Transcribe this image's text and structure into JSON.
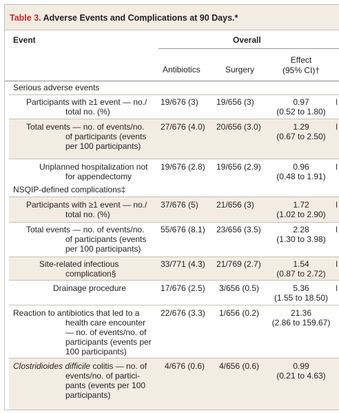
{
  "table": {
    "number_label": "Table 3.",
    "title_text": " Adverse Events and Complications at 90 Days.*",
    "header": {
      "event": "Event",
      "overall": "Overall",
      "antibiotics": "Antibiotics",
      "surgery": "Surgery",
      "effect_line1": "Effect",
      "effect_line2": "(95% CI)†"
    },
    "rows": [
      {
        "section": "Serious adverse events"
      },
      {
        "label": [
          "Participants with ≥1 event — no./",
          "total no. (%)"
        ],
        "antibiotics": "19/676 (3)",
        "surgery": "19/656 (3)",
        "effect": [
          "0.97",
          "(0.52 to 1.80)"
        ]
      },
      {
        "label": [
          "Total events — no. of events/no.",
          "of participants (events",
          "per 100 participants)"
        ],
        "antibiotics": "27/676 (4.0)",
        "surgery": "20/656 (3.0)",
        "effect": [
          "1.29",
          "(0.67 to 2.50)"
        ]
      },
      {
        "label": [
          "Unplanned hospitalization not",
          "for appendectomy"
        ],
        "antibiotics": "19/676 (2.8)",
        "surgery": "19/656 (2.9)",
        "effect": [
          "0.96",
          "(0.48 to 1.91)"
        ]
      },
      {
        "section": "NSQIP-defined complications‡"
      },
      {
        "label": [
          "Participants with ≥1 event — no./",
          "total no. (%)"
        ],
        "antibiotics": "37/676 (5)",
        "surgery": "21/656 (3)",
        "effect": [
          "1.72",
          "(1.02 to 2.90)"
        ]
      },
      {
        "label": [
          "Total events — no. of events/no.",
          "of participants (events",
          "per 100 participants)"
        ],
        "antibiotics": "55/676 (8.1)",
        "surgery": "23/656 (3.5)",
        "effect": [
          "2.28",
          "(1.30 to 3.98)"
        ]
      },
      {
        "label": [
          "Site-related infectious",
          "complication§"
        ],
        "antibiotics": "33/771 (4.3)",
        "surgery": "21/769 (2.7)",
        "effect": [
          "1.54",
          "(0.87 to 2.72)"
        ]
      },
      {
        "label": [
          "Drainage procedure"
        ],
        "antibiotics": "17/676 (2.5)",
        "surgery": "3/656 (0.5)",
        "effect": [
          "5.36",
          "(1.55 to 18.50)"
        ]
      },
      {
        "label": [
          "Reaction to antibiotics that led to a",
          "health care encounter",
          "— no. of events/no. of",
          "participants (events per",
          "100 participants)"
        ],
        "antibiotics": "22/676 (3.3)",
        "surgery": "1/656 (0.2)",
        "effect": [
          "21.36",
          "(2.86 to 159.67)"
        ]
      },
      {
        "label_italic": "Clostridioides difficile",
        "label": [
          " colitis — no. of",
          "events/no. of partici-",
          "pants (events per 100",
          "participants)"
        ],
        "antibiotics": "4/676 (0.6)",
        "surgery": "4/656 (0.6)",
        "effect": [
          "0.99",
          "(0.21 to 4.63)"
        ]
      }
    ]
  }
}
